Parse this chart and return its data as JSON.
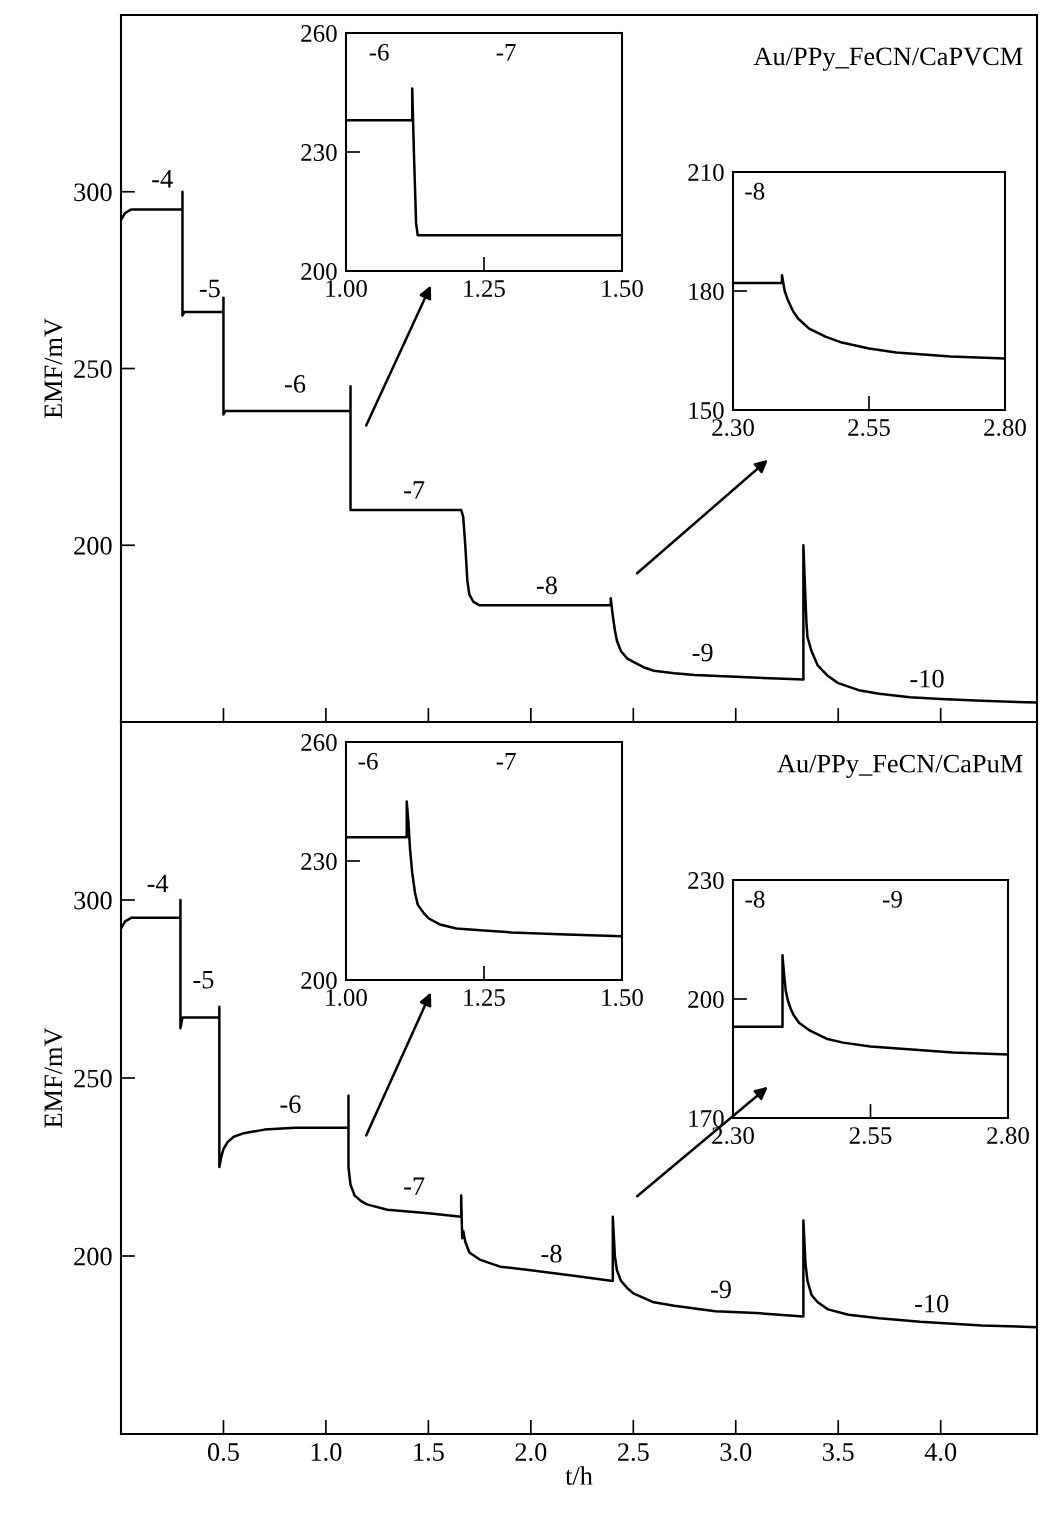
{
  "chart_data": [
    {
      "type": "line",
      "ylabel": "EMF/mV",
      "xlim": [
        0,
        4.47
      ],
      "ylim": [
        150,
        350
      ],
      "xticks": [
        0.5,
        1,
        1.5,
        2,
        2.5,
        3,
        3.5,
        4
      ],
      "yticks": [
        200,
        250,
        300
      ],
      "tick_labels": "y",
      "annotations": [
        "Au/PPy_FeCN/CaPVCM",
        "-4",
        "-5",
        "-6",
        "-7",
        "-8",
        "-9",
        "-10"
      ],
      "series": [
        {
          "color": "#000000",
          "x": [
            0,
            0.02,
            0.05,
            0.3,
            0.3,
            0.3,
            0.31,
            0.5,
            0.5,
            0.5,
            0.51,
            1.12,
            1.12,
            1.12,
            1.13,
            1.66,
            1.67,
            1.68,
            1.69,
            1.7,
            1.72,
            1.75,
            2.39,
            2.39,
            2.4,
            2.41,
            2.42,
            2.44,
            2.47,
            2.5,
            2.55,
            2.6,
            2.7,
            2.8,
            3.0,
            3.2,
            3.33,
            3.33,
            3.34,
            3.345,
            3.35,
            3.37,
            3.4,
            3.45,
            3.5,
            3.6,
            3.7,
            3.85,
            4.0,
            4.2,
            4.47
          ],
          "values": [
            292,
            294,
            295,
            295,
            300,
            265,
            266,
            266,
            270,
            237,
            238,
            238,
            245,
            210,
            210,
            210,
            208,
            200,
            190,
            186,
            184,
            183,
            183,
            185,
            180,
            176,
            173,
            170,
            168,
            167,
            165.5,
            164.5,
            163.8,
            163.3,
            162.8,
            162.3,
            162,
            200,
            185,
            178,
            174,
            170,
            166,
            163,
            161,
            159,
            158,
            157,
            156.5,
            156,
            155.5
          ]
        }
      ]
    },
    {
      "type": "line",
      "xlim": [
        1.0,
        1.5
      ],
      "ylim": [
        200,
        260
      ],
      "xticks": [
        {
          "value": 1.0,
          "label": "1.00"
        },
        1.25,
        {
          "value": 1.5,
          "label": "1.50"
        }
      ],
      "yticks": [
        200,
        230,
        260
      ],
      "annotations": [
        "-6",
        "-7"
      ],
      "series": [
        {
          "color": "#000000",
          "x": [
            1.0,
            1.12,
            1.12,
            1.123,
            1.127,
            1.13,
            1.5
          ],
          "values": [
            238,
            238,
            246,
            230,
            212,
            209,
            209
          ]
        }
      ]
    },
    {
      "type": "line",
      "xlim": [
        2.3,
        2.8
      ],
      "ylim": [
        150,
        210
      ],
      "xticks": [
        {
          "value": 2.3,
          "label": "2.30"
        },
        2.55,
        {
          "value": 2.8,
          "label": "2.80"
        }
      ],
      "yticks": [
        150,
        180,
        210
      ],
      "annotations": [
        "-8"
      ],
      "series": [
        {
          "color": "#000000",
          "x": [
            2.3,
            2.39,
            2.39,
            2.395,
            2.4,
            2.41,
            2.42,
            2.44,
            2.47,
            2.5,
            2.55,
            2.6,
            2.7,
            2.8
          ],
          "values": [
            182,
            182,
            184,
            180,
            178,
            175,
            173,
            170.5,
            168.5,
            167,
            165.5,
            164.5,
            163.5,
            163
          ]
        }
      ]
    },
    {
      "type": "line",
      "xlabel": "t/h",
      "ylabel": "EMF/mV",
      "xlim": [
        0,
        4.47
      ],
      "ylim": [
        150,
        350
      ],
      "xticks": [
        0.5,
        {
          "value": 1.0,
          "label": "1.0"
        },
        1.5,
        {
          "value": 2.0,
          "label": "2.0"
        },
        2.5,
        {
          "value": 3.0,
          "label": "3.0"
        },
        3.5,
        {
          "value": 4.0,
          "label": "4.0"
        }
      ],
      "yticks": [
        200,
        250,
        300
      ],
      "annotations": [
        "Au/PPy_FeCN/CaPuM",
        "-4",
        "-5",
        "-6",
        "-7",
        "-8",
        "-9",
        "-10"
      ],
      "series": [
        {
          "color": "#000000",
          "x": [
            0,
            0.02,
            0.05,
            0.29,
            0.29,
            0.29,
            0.3,
            0.48,
            0.48,
            0.48,
            0.49,
            0.5,
            0.52,
            0.55,
            0.6,
            0.7,
            0.85,
            1.11,
            1.11,
            1.11,
            1.12,
            1.14,
            1.17,
            1.2,
            1.3,
            1.5,
            1.66,
            1.66,
            1.665,
            1.67,
            1.68,
            1.7,
            1.75,
            1.85,
            2.0,
            2.2,
            2.4,
            2.4,
            2.41,
            2.42,
            2.44,
            2.47,
            2.5,
            2.6,
            2.7,
            2.9,
            3.1,
            3.33,
            3.33,
            3.34,
            3.35,
            3.37,
            3.4,
            3.45,
            3.55,
            3.7,
            3.9,
            4.2,
            4.47
          ],
          "values": [
            292,
            294,
            295,
            295,
            300,
            264,
            267,
            267,
            270,
            225,
            228,
            230,
            232,
            233.5,
            234.5,
            235.5,
            236,
            236,
            245,
            225,
            220,
            217,
            215.5,
            214.5,
            213,
            212,
            211,
            217,
            205,
            207,
            204,
            201,
            199,
            197,
            196,
            194.5,
            193,
            211,
            200,
            196,
            193,
            191,
            189.5,
            187,
            186,
            184.5,
            184,
            183,
            210,
            198,
            193,
            189,
            187,
            185,
            183.5,
            182.5,
            181.5,
            180.5,
            180
          ]
        }
      ]
    },
    {
      "type": "line",
      "xlim": [
        1.0,
        1.5
      ],
      "ylim": [
        200,
        260
      ],
      "xticks": [
        {
          "value": 1.0,
          "label": "1.00"
        },
        1.25,
        {
          "value": 1.5,
          "label": "1.50"
        }
      ],
      "yticks": [
        200,
        230,
        260
      ],
      "annotations": [
        "-6",
        "-7"
      ],
      "series": [
        {
          "color": "#000000",
          "x": [
            1.0,
            1.11,
            1.11,
            1.113,
            1.116,
            1.12,
            1.125,
            1.13,
            1.14,
            1.15,
            1.17,
            1.2,
            1.25,
            1.3,
            1.4,
            1.5
          ],
          "values": [
            236,
            236,
            245,
            240,
            233,
            227,
            222,
            219,
            217,
            215.5,
            214,
            213,
            212.5,
            212,
            211.5,
            211
          ]
        }
      ]
    },
    {
      "type": "line",
      "xlim": [
        2.3,
        2.8
      ],
      "ylim": [
        170,
        230
      ],
      "xticks": [
        {
          "value": 2.3,
          "label": "2.30"
        },
        2.55,
        {
          "value": 2.8,
          "label": "2.80"
        }
      ],
      "yticks": [
        170,
        200,
        230
      ],
      "annotations": [
        "-8",
        "-9"
      ],
      "series": [
        {
          "color": "#000000",
          "x": [
            2.3,
            2.39,
            2.39,
            2.393,
            2.396,
            2.4,
            2.405,
            2.41,
            2.42,
            2.44,
            2.47,
            2.5,
            2.55,
            2.6,
            2.7,
            2.8
          ],
          "values": [
            193,
            193,
            211,
            206,
            202,
            199.5,
            197.5,
            196,
            194,
            192,
            190,
            189,
            188,
            187.5,
            186.5,
            186
          ]
        }
      ]
    }
  ]
}
